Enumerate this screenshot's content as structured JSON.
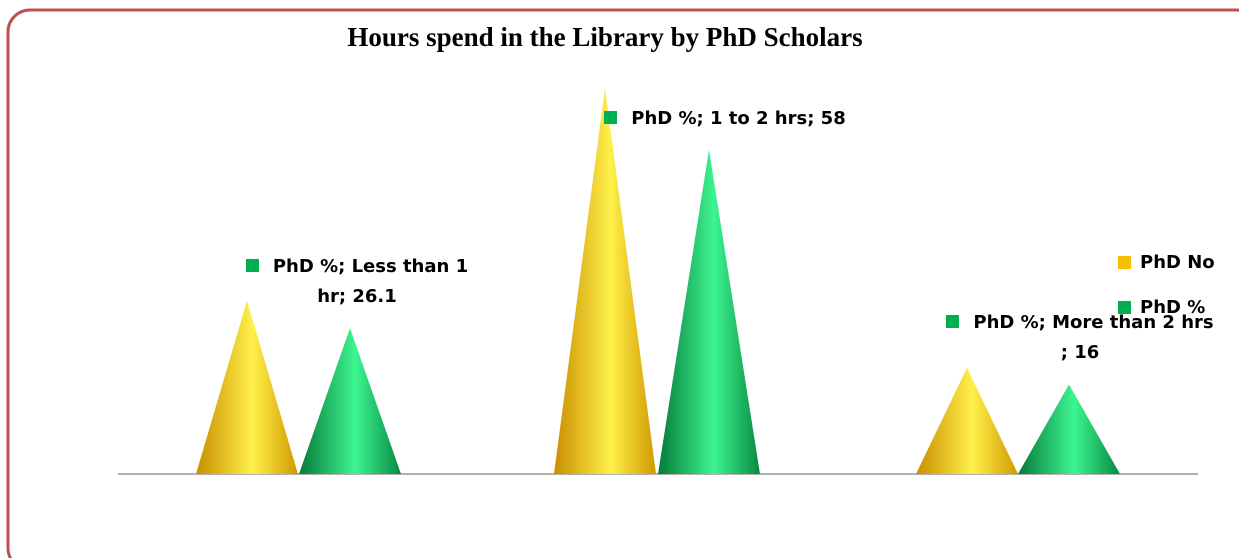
{
  "chart_data": {
    "type": "cone",
    "title": "Hours spend in the Library by PhD Scholars",
    "series": [
      {
        "name": "PhD No",
        "color": "#f5c000",
        "values": [
          31,
          69,
          19
        ]
      },
      {
        "name": "PhD %",
        "color": "#00b050",
        "values": [
          26.1,
          58,
          16
        ],
        "value_labels": [
          "PhD %; Less than 1 hr; 26.1",
          "PhD %; 1 to 2 hrs; 58",
          "PhD %; More than 2 hrs ; 16"
        ]
      }
    ],
    "legend": "right"
  }
}
